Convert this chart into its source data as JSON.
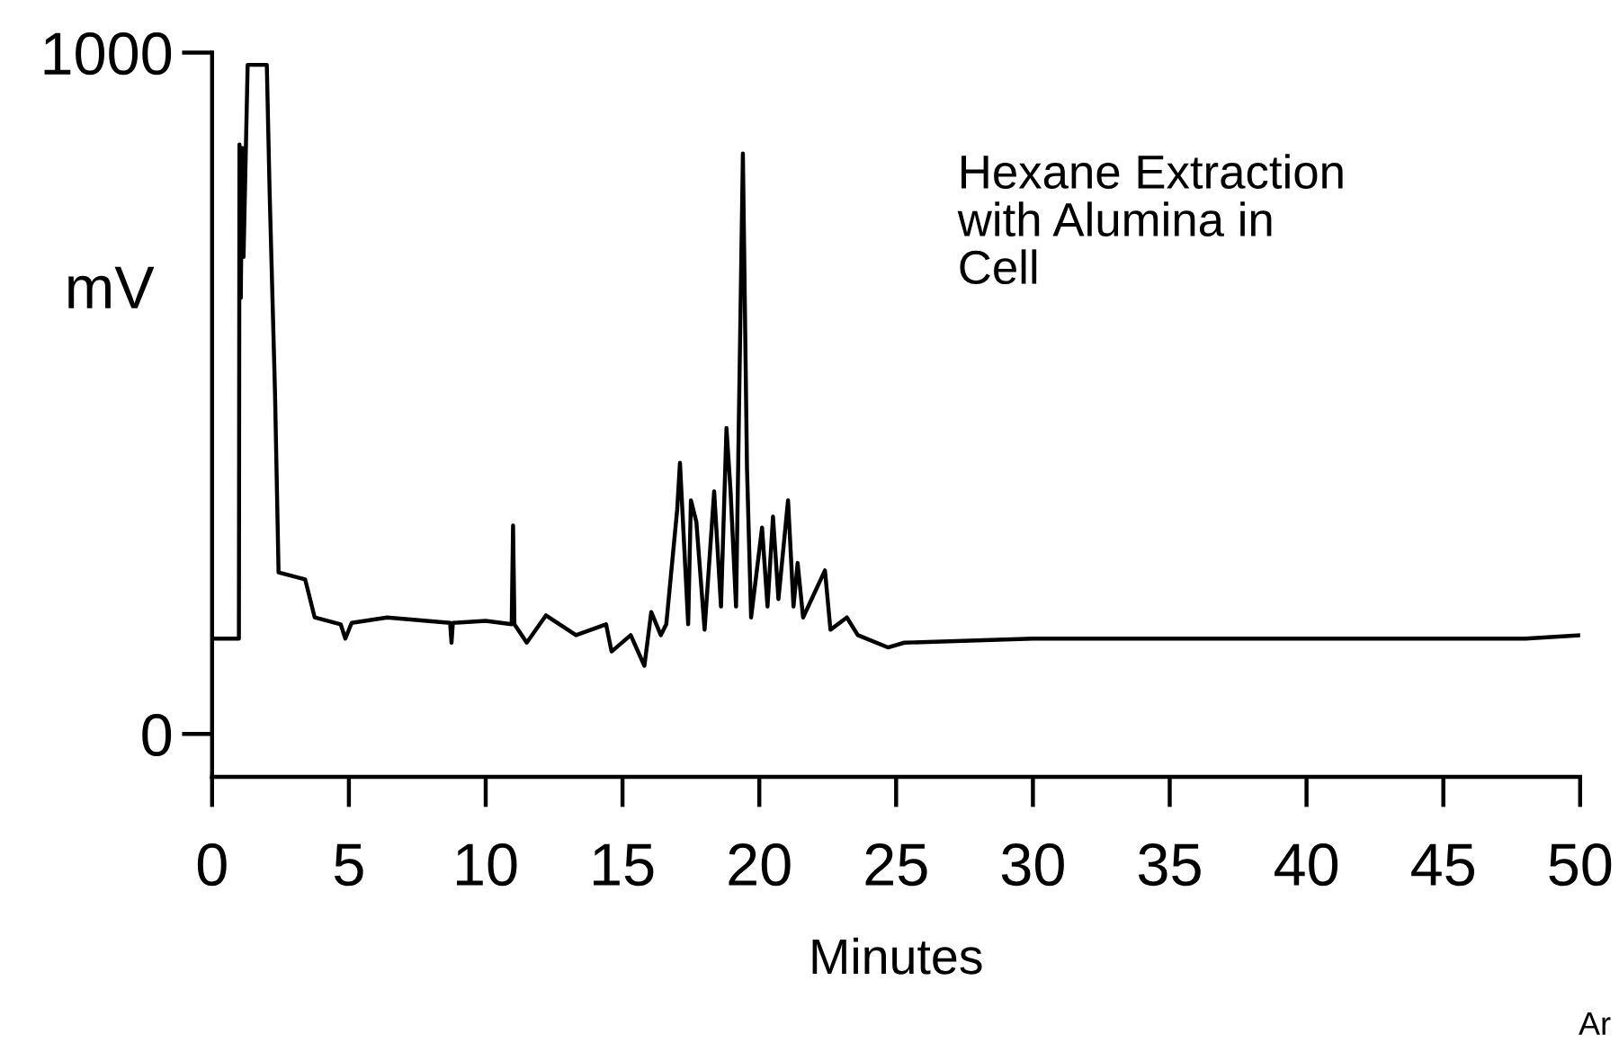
{
  "chart_data": {
    "type": "line",
    "xlabel": "Minutes",
    "ylabel": "mV",
    "annotations": [
      "Hexane Extraction\nwith Alumina in\nCell",
      "Ar"
    ],
    "x": [
      0,
      0.98,
      1.0,
      1.05,
      1.1,
      1.15,
      1.3,
      2.0,
      2.1,
      2.3,
      2.43,
      3.4,
      3.75,
      4.7,
      4.87,
      5.1,
      6.4,
      8.7,
      8.75,
      8.8,
      10.0,
      10.95,
      11.0,
      11.05,
      11.5,
      12.2,
      13.3,
      14.4,
      14.6,
      15.3,
      15.8,
      16.05,
      16.4,
      16.6,
      17.0,
      17.1,
      17.4,
      17.5,
      17.7,
      18.0,
      18.35,
      18.6,
      18.8,
      18.95,
      19.15,
      19.4,
      19.55,
      19.7,
      20.1,
      20.3,
      20.5,
      20.7,
      21.05,
      21.25,
      21.4,
      21.6,
      22.4,
      22.6,
      23.2,
      23.6,
      24.7,
      25.3,
      30,
      40,
      48,
      50
    ],
    "series": [
      {
        "color": "#000000",
        "values": [
          140,
          140,
          865,
          640,
          860,
          700,
          982,
          982,
          800,
          500,
          237,
          227,
          171,
          161,
          140,
          163,
          171,
          163,
          134,
          163,
          166,
          161,
          306,
          161,
          134,
          174,
          145,
          161,
          121,
          145,
          100,
          179,
          145,
          161,
          330,
          398,
          161,
          343,
          311,
          153,
          356,
          187,
          449,
          356,
          187,
          852,
          390,
          171,
          303,
          187,
          319,
          198,
          343,
          187,
          251,
          171,
          240,
          153,
          171,
          145,
          127,
          134,
          140,
          140,
          140,
          145
        ]
      }
    ],
    "xlim": [
      0,
      50
    ],
    "ylim": [
      -63,
      1000
    ],
    "xticks": [
      0,
      5,
      10,
      15,
      20,
      25,
      30,
      35,
      40,
      45,
      50
    ],
    "yticks": [
      0,
      1000
    ],
    "grid": false,
    "legend": false,
    "marker": "none",
    "line_style": "solid"
  }
}
